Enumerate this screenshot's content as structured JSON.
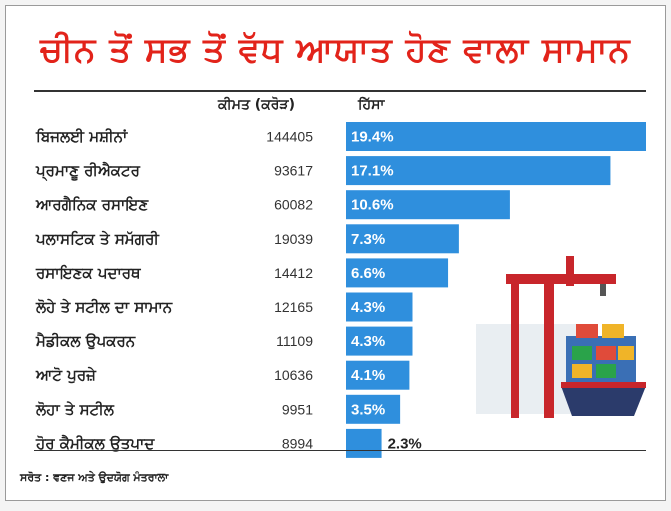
{
  "title": "ਚੀਨ ਤੋਂ ਸਭ ਤੋਂ ਵੱਧ ਆਯਾਤ ਹੋਣ ਵਾਲਾ ਸਾਮਾਨ",
  "source": "ਸਰੋਤ : ਵਣਜ ਅਤੇ ਉਦਯੋਗ ਮੰਤਰਾਲਾ",
  "colors": {
    "title": "#e2231a",
    "bar": "#2f8fdd"
  },
  "chart_data": {
    "type": "bar",
    "orientation": "horizontal",
    "value_header": "ਕੀਮਤ (ਕਰੋੜ)",
    "share_header": "ਹਿੱਸਾ",
    "categories": [
      "ਬਿਜਲਈ ਮਸ਼ੀਨਾਂ",
      "ਪ੍ਰਮਾਣੂ ਰੀਐਕਟਰ",
      "ਆਰਗੈਨਿਕ ਰਸਾਇਣ",
      "ਪਲਾਸਟਿਕ ਤੇ ਸਮੱਗਰੀ",
      "ਰਸਾਇਣਕ ਪਦਾਰਥ",
      "ਲੋਹੇ ਤੇ ਸਟੀਲ ਦਾ ਸਾਮਾਨ",
      "ਮੈਡੀਕਲ ਉਪਕਰਨ",
      "ਆਟੋ ਪੁਰਜ਼ੇ",
      "ਲੋਹਾ ਤੇ ਸਟੀਲ",
      "ਹੋਰ ਕੈਮੀਕਲ ਉਤਪਾਦ"
    ],
    "values": [
      "144405",
      "93617",
      "60082",
      "19039",
      "14412",
      "12165",
      "11109",
      "10636",
      "9951",
      "8994"
    ],
    "shares": [
      19.4,
      17.1,
      10.6,
      7.3,
      6.6,
      4.3,
      4.3,
      4.1,
      3.5,
      2.3
    ],
    "share_labels": [
      "19.4%",
      "17.1%",
      "10.6%",
      "7.3%",
      "6.6%",
      "4.3%",
      "4.3%",
      "4.1%",
      "3.5%",
      "2.3%"
    ]
  }
}
